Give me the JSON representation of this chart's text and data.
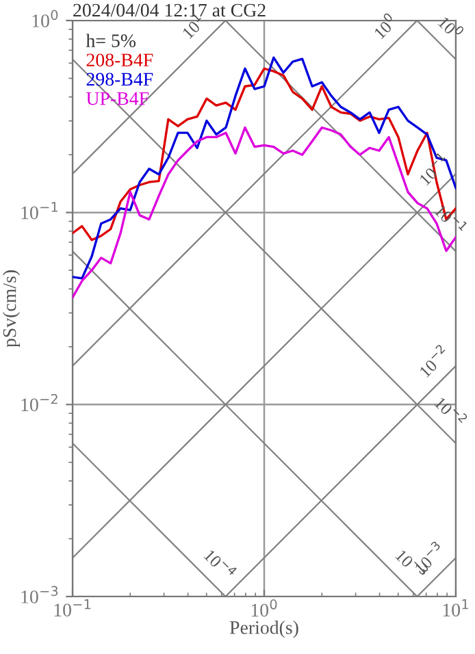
{
  "chart_data": {
    "type": "line",
    "title": "2024/04/04 12:17 at CG2",
    "xlabel": "Period(s)",
    "ylabel": "pSv(cm/s)",
    "legend_title": "h= 5%",
    "legend": "top left",
    "log": "xy",
    "grid": true,
    "xlim": [
      0.1,
      10
    ],
    "ylim": [
      0.001,
      1
    ],
    "xticks": [
      {
        "value": 0.1,
        "label": "10$^{−1}$"
      },
      {
        "value": 1,
        "label": "10$^{0}$"
      },
      {
        "value": 10,
        "label": "10$^{1}$"
      }
    ],
    "yticks": [
      {
        "value": 0.001,
        "label": "10$^{−3}$"
      },
      {
        "value": 0.01,
        "label": "10$^{−2}$"
      },
      {
        "value": 0.1,
        "label": "10$^{−1}$"
      },
      {
        "value": 1,
        "label": "10$^{0}$"
      }
    ],
    "x": [
      0.1,
      0.112,
      0.126,
      0.141,
      0.158,
      0.178,
      0.2,
      0.224,
      0.251,
      0.282,
      0.316,
      0.355,
      0.398,
      0.447,
      0.501,
      0.562,
      0.631,
      0.708,
      0.794,
      0.891,
      1,
      1.12,
      1.26,
      1.41,
      1.58,
      1.78,
      2,
      2.24,
      2.51,
      2.82,
      3.16,
      3.55,
      3.98,
      4.47,
      5.01,
      5.62,
      6.31,
      7.08,
      7.94,
      8.91,
      10
    ],
    "series": [
      {
        "name": "208-B4F",
        "color": "#dd0000",
        "values": [
          0.0781,
          0.0849,
          0.072,
          0.0756,
          0.082,
          0.114,
          0.132,
          0.139,
          0.144,
          0.146,
          0.306,
          0.282,
          0.306,
          0.316,
          0.392,
          0.361,
          0.373,
          0.343,
          0.454,
          0.462,
          0.562,
          0.544,
          0.518,
          0.425,
          0.392,
          0.343,
          0.454,
          0.355,
          0.332,
          0.327,
          0.301,
          0.316,
          0.306,
          0.311,
          0.247,
          0.158,
          0.21,
          0.26,
          0.144,
          0.0921,
          0.105
        ]
      },
      {
        "name": "298-B4F",
        "color": "#0000dd",
        "values": [
          0.0462,
          0.0454,
          0.0591,
          0.0877,
          0.0921,
          0.105,
          0.103,
          0.144,
          0.169,
          0.158,
          0.193,
          0.26,
          0.26,
          0.217,
          0.301,
          0.255,
          0.277,
          0.405,
          0.562,
          0.44,
          0.454,
          0.641,
          0.535,
          0.611,
          0.631,
          0.454,
          0.477,
          0.405,
          0.355,
          0.332,
          0.306,
          0.332,
          0.26,
          0.343,
          0.355,
          0.301,
          0.277,
          0.255,
          0.193,
          0.187,
          0.134
        ]
      },
      {
        "name": "UP-B4F",
        "color": "#dd00dd",
        "values": [
          0.0361,
          0.044,
          0.0501,
          0.0581,
          0.0544,
          0.0781,
          0.128,
          0.0968,
          0.0921,
          0.122,
          0.158,
          0.187,
          0.21,
          0.235,
          0.247,
          0.247,
          0.26,
          0.203,
          0.277,
          0.22,
          0.224,
          0.22,
          0.203,
          0.21,
          0.2,
          0.235,
          0.277,
          0.268,
          0.255,
          0.22,
          0.2,
          0.217,
          0.21,
          0.247,
          0.178,
          0.128,
          0.112,
          0.105,
          0.0877,
          0.0631,
          0.0744
        ]
      },
      {
        "color": "#808080",
        "x": [
          6.28,
          10
        ],
        "values": [
          1,
          0.628
        ]
      },
      {
        "color": "#808080",
        "x": [
          0.628,
          10
        ],
        "values": [
          1,
          0.0628
        ]
      },
      {
        "color": "#808080",
        "x": [
          0.1,
          10
        ],
        "values": [
          0.628,
          0.00628
        ]
      },
      {
        "color": "#808080",
        "x": [
          0.1,
          6.28
        ],
        "values": [
          0.0628,
          0.001
        ]
      },
      {
        "color": "#808080",
        "x": [
          0.1,
          0.628
        ],
        "values": [
          0.00628,
          0.001
        ]
      },
      {
        "color": "#808080",
        "x": [
          0.1,
          0.628
        ],
        "values": [
          0.159,
          1
        ]
      },
      {
        "color": "#808080",
        "x": [
          0.1,
          6.28
        ],
        "values": [
          0.0159,
          1
        ]
      },
      {
        "color": "#808080",
        "x": [
          0.1,
          10
        ],
        "values": [
          0.00159,
          0.159
        ]
      },
      {
        "color": "#808080",
        "x": [
          0.628,
          10
        ],
        "values": [
          0.001,
          0.0159
        ]
      },
      {
        "color": "#808080",
        "x": [
          6.28,
          10
        ],
        "values": [
          0.001,
          0.00159
        ]
      }
    ],
    "annotations": [
      {
        "text": "10$^{1}$",
        "x": 0.5,
        "y": 0.796
      },
      {
        "text": "10$^{0}$",
        "x": 5,
        "y": 0.795
      },
      {
        "text": "10$^{0}$",
        "x": 8,
        "y": 0.785
      },
      {
        "text": "10$^{−1}$",
        "x": 9,
        "y": 0.143
      },
      {
        "text": "10$^{−1}$",
        "x": 8,
        "y": 0.0785
      },
      {
        "text": "10$^{−2}$",
        "x": 9,
        "y": 0.0143
      },
      {
        "text": "10$^{−2}$",
        "x": 8,
        "y": 0.00785
      },
      {
        "text": "10$^{−4}$",
        "x": 0.5,
        "y": 0.00126
      },
      {
        "text": "10$^{−3}$",
        "x": 5,
        "y": 0.00126
      },
      {
        "text": "10$^{−3}$",
        "x": 8.5,
        "y": 0.00135
      }
    ]
  }
}
